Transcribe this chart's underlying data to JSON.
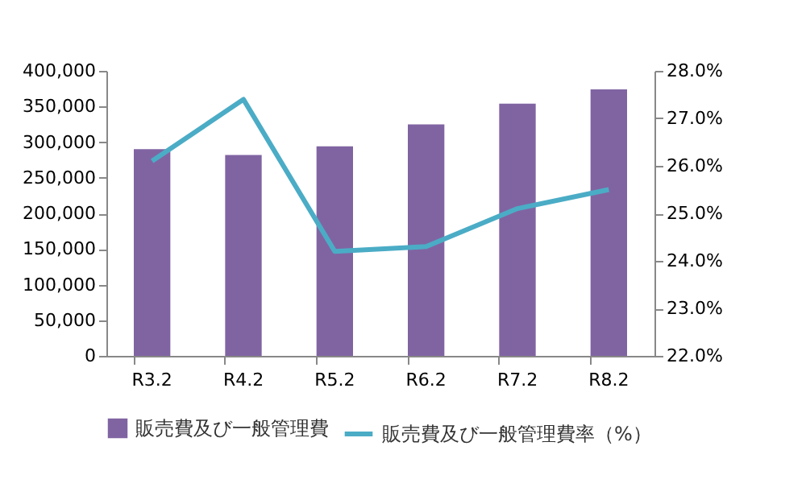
{
  "chart_data": {
    "type": "bar",
    "categories": [
      "R3.2",
      "R4.2",
      "R5.2",
      "R6.2",
      "R7.2",
      "R8.2"
    ],
    "series": [
      {
        "name": "販売費及び一般管理費",
        "color": "#8064a2",
        "values": [
          290000,
          282000,
          294000,
          325000,
          354000,
          374000
        ]
      },
      {
        "name": "販売費及び一般管理費率（%）",
        "type": "line",
        "axis": "y2",
        "color": "#4bacc6",
        "values": [
          26.1,
          27.4,
          24.2,
          24.3,
          25.1,
          25.5
        ]
      }
    ],
    "ylim": [
      0,
      400000
    ],
    "yticks": [
      {
        "value": 0,
        "label": "0"
      },
      {
        "value": 50000,
        "label": "50,000"
      },
      {
        "value": 100000,
        "label": "100,000"
      },
      {
        "value": 150000,
        "label": "150,000"
      },
      {
        "value": 200000,
        "label": "200,000"
      },
      {
        "value": 250000,
        "label": "250,000"
      },
      {
        "value": 300000,
        "label": "300,000"
      },
      {
        "value": 350000,
        "label": "350,000"
      },
      {
        "value": 400000,
        "label": "400,000"
      }
    ],
    "y2lim": [
      22,
      28
    ],
    "y2ticks": [
      {
        "value": 22,
        "label": "22.0%"
      },
      {
        "value": 23,
        "label": "23.0%"
      },
      {
        "value": 24,
        "label": "24.0%"
      },
      {
        "value": 25,
        "label": "25.0%"
      },
      {
        "value": 26,
        "label": "26.0%"
      },
      {
        "value": 27,
        "label": "27.0%"
      },
      {
        "value": 28,
        "label": "28.0%"
      }
    ],
    "legend": "bottom",
    "grid": false,
    "marker": "none"
  }
}
